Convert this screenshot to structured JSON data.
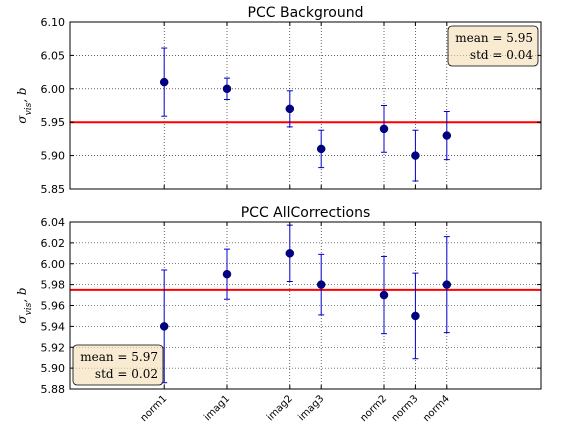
{
  "colors": {
    "point": "#00008b",
    "errorbar": "#0000cd",
    "mean_line": "#ff0000",
    "stats_box_fill": "#f5deb3",
    "grid": "#000000"
  },
  "chart_data": [
    {
      "type": "scatter",
      "title": "PCC Background",
      "ylabel": "σ_{vis}, b",
      "ylabel_main": "σ",
      "ylabel_sub": "vis",
      "ylabel_suffix": ", b",
      "ylim": [
        5.85,
        6.1
      ],
      "yticks": [
        5.85,
        5.9,
        5.95,
        6.0,
        6.05,
        6.1
      ],
      "ytick_labels": [
        "5.85",
        "5.90",
        "5.95",
        "6.00",
        "6.05",
        "6.10"
      ],
      "xlim": [
        0,
        15
      ],
      "xticks": [
        3,
        5,
        7,
        8,
        10,
        11,
        12
      ],
      "grid": true,
      "show_x_labels": false,
      "categories": [
        "norm1",
        "imag1",
        "imag2",
        "imag3",
        "norm2",
        "norm3",
        "norm4"
      ],
      "values": [
        6.01,
        6.0,
        5.97,
        5.91,
        5.94,
        5.9,
        5.93
      ],
      "errors": [
        0.051,
        0.016,
        0.027,
        0.028,
        0.035,
        0.038,
        0.036
      ],
      "mean": 5.95,
      "stats_box": {
        "mean_text": "mean = 5.95",
        "std_text": "std = 0.04",
        "placement": "top-right"
      }
    },
    {
      "type": "scatter",
      "title": "PCC AllCorrections",
      "ylabel": "σ_{vis}, b",
      "ylabel_main": "σ",
      "ylabel_sub": "vis",
      "ylabel_suffix": ", b",
      "ylim": [
        5.88,
        6.04
      ],
      "yticks": [
        5.88,
        5.9,
        5.92,
        5.94,
        5.96,
        5.98,
        6.0,
        6.02,
        6.04
      ],
      "ytick_labels": [
        "5.88",
        "5.90",
        "5.92",
        "5.94",
        "5.96",
        "5.98",
        "6.00",
        "6.02",
        "6.04"
      ],
      "xlim": [
        0,
        15
      ],
      "xticks": [
        3,
        5,
        7,
        8,
        10,
        11,
        12
      ],
      "grid": true,
      "show_x_labels": true,
      "categories": [
        "norm1",
        "imag1",
        "imag2",
        "imag3",
        "norm2",
        "norm3",
        "norm4"
      ],
      "values": [
        5.94,
        5.99,
        6.01,
        5.98,
        5.97,
        5.95,
        5.98
      ],
      "errors": [
        0.054,
        0.024,
        0.027,
        0.029,
        0.037,
        0.041,
        0.046
      ],
      "mean": 5.975,
      "stats_box": {
        "mean_text": "mean = 5.97",
        "std_text": "std = 0.02",
        "placement": "bottom-left"
      }
    }
  ]
}
